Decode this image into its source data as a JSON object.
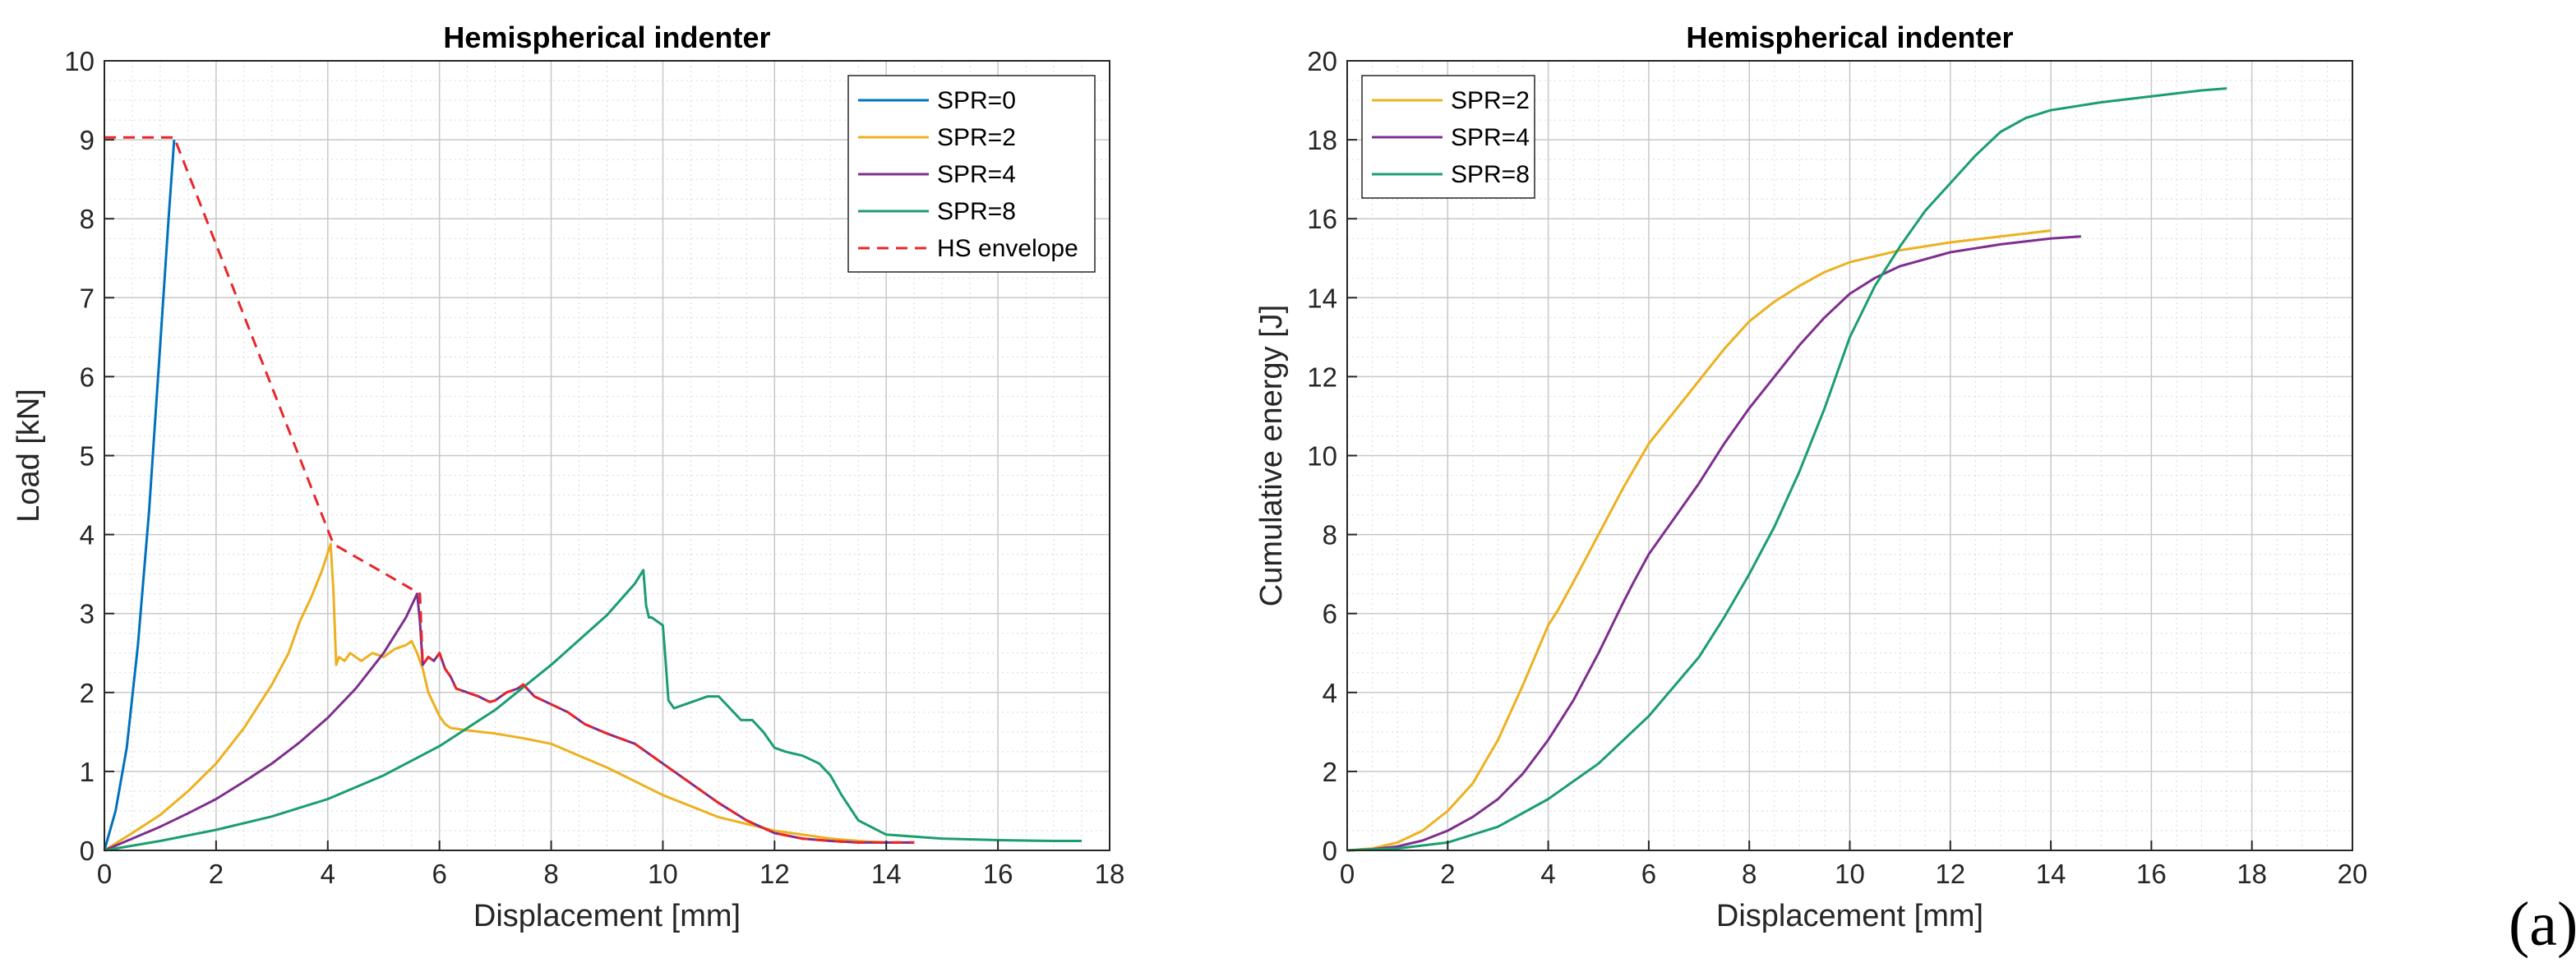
{
  "panel_label": "(a)",
  "chart_data": [
    {
      "type": "line",
      "title": "Hemispherical indenter",
      "xlabel": "Displacement [mm]",
      "ylabel": "Load [kN]",
      "xlim": [
        0,
        18
      ],
      "ylim": [
        0,
        10
      ],
      "xticks": [
        0,
        2,
        4,
        6,
        8,
        10,
        12,
        14,
        16,
        18
      ],
      "yticks": [
        0,
        1,
        2,
        3,
        4,
        5,
        6,
        7,
        8,
        9,
        10
      ],
      "grid": true,
      "minor_grid": true,
      "legend_position": "top-right",
      "series": [
        {
          "name": "SPR=0",
          "color": "#0072BD",
          "style": "solid",
          "x": [
            0,
            0.2,
            0.4,
            0.6,
            0.8,
            1.0,
            1.15,
            1.25
          ],
          "y": [
            0,
            0.5,
            1.3,
            2.6,
            4.3,
            6.4,
            8.0,
            9.0
          ]
        },
        {
          "name": "SPR=2",
          "color": "#EDB120",
          "style": "solid",
          "x": [
            0,
            0.5,
            1.0,
            1.5,
            2.0,
            2.5,
            3.0,
            3.3,
            3.5,
            3.7,
            3.9,
            4.05,
            4.1,
            4.15,
            4.2,
            4.3,
            4.4,
            4.6,
            4.8,
            5.0,
            5.2,
            5.4,
            5.5,
            5.6,
            5.7,
            5.8,
            5.9,
            6.0,
            6.1,
            6.2,
            6.5,
            7.0,
            7.5,
            8.0,
            8.5,
            9.0,
            10.0,
            11.0,
            12.0,
            13.0,
            13.5,
            14.0,
            14.5
          ],
          "y": [
            0,
            0.22,
            0.45,
            0.75,
            1.1,
            1.55,
            2.1,
            2.5,
            2.9,
            3.2,
            3.55,
            3.88,
            3.3,
            2.35,
            2.45,
            2.4,
            2.5,
            2.4,
            2.5,
            2.45,
            2.55,
            2.6,
            2.65,
            2.5,
            2.3,
            2.0,
            1.85,
            1.7,
            1.6,
            1.55,
            1.52,
            1.48,
            1.42,
            1.35,
            1.2,
            1.05,
            0.7,
            0.42,
            0.25,
            0.15,
            0.12,
            0.1,
            0.1
          ]
        },
        {
          "name": "SPR=4",
          "color": "#7E2F8E",
          "style": "solid",
          "x": [
            0,
            0.5,
            1.0,
            1.5,
            2.0,
            2.5,
            3.0,
            3.5,
            4.0,
            4.5,
            5.0,
            5.4,
            5.6,
            5.65,
            5.7,
            5.8,
            5.9,
            6.0,
            6.1,
            6.2,
            6.3,
            6.5,
            6.7,
            6.9,
            7.0,
            7.2,
            7.4,
            7.5,
            7.7,
            8.0,
            8.3,
            8.6,
            9.0,
            9.5,
            10.0,
            10.5,
            11.0,
            11.5,
            12.0,
            12.5,
            13.0,
            13.5,
            14.0,
            14.5
          ],
          "y": [
            0,
            0.15,
            0.3,
            0.47,
            0.65,
            0.87,
            1.1,
            1.37,
            1.68,
            2.05,
            2.5,
            2.95,
            3.25,
            2.9,
            2.35,
            2.45,
            2.4,
            2.5,
            2.3,
            2.2,
            2.05,
            2.0,
            1.95,
            1.88,
            1.9,
            2.0,
            2.05,
            2.1,
            1.95,
            1.85,
            1.75,
            1.6,
            1.48,
            1.35,
            1.1,
            0.85,
            0.6,
            0.38,
            0.22,
            0.15,
            0.12,
            0.1,
            0.1,
            0.1
          ]
        },
        {
          "name": "SPR=8",
          "color": "#1B9E6E",
          "style": "solid",
          "x": [
            0,
            1.0,
            2.0,
            3.0,
            4.0,
            5.0,
            6.0,
            7.0,
            8.0,
            9.0,
            9.5,
            9.65,
            9.7,
            9.75,
            9.8,
            10.0,
            10.05,
            10.1,
            10.2,
            10.4,
            10.6,
            10.8,
            11.0,
            11.2,
            11.4,
            11.6,
            11.8,
            12.0,
            12.2,
            12.5,
            12.8,
            13.0,
            13.2,
            13.5,
            14.0,
            15.0,
            16.0,
            17.0,
            17.5
          ],
          "y": [
            0,
            0.12,
            0.26,
            0.43,
            0.65,
            0.95,
            1.32,
            1.78,
            2.35,
            2.98,
            3.38,
            3.55,
            3.1,
            2.95,
            2.95,
            2.85,
            2.4,
            1.9,
            1.8,
            1.85,
            1.9,
            1.95,
            1.95,
            1.8,
            1.65,
            1.65,
            1.5,
            1.3,
            1.25,
            1.2,
            1.1,
            0.95,
            0.7,
            0.38,
            0.2,
            0.15,
            0.13,
            0.12,
            0.12
          ]
        },
        {
          "name": "HS envelope",
          "color": "#E8262A",
          "style": "dashed",
          "x": [
            0,
            1.25,
            4.1,
            5.65,
            5.7,
            5.8,
            5.9,
            6.0,
            6.1,
            6.2,
            6.3,
            6.5,
            6.7,
            6.9,
            7.0,
            7.2,
            7.4,
            7.5,
            7.7,
            8.0,
            8.3,
            8.6,
            9.0,
            9.5,
            10.0,
            10.5,
            11.0,
            11.5,
            12.0,
            12.5,
            13.0,
            13.5,
            14.0,
            14.5
          ],
          "y": [
            9.03,
            9.03,
            3.88,
            3.25,
            2.35,
            2.45,
            2.4,
            2.5,
            2.3,
            2.2,
            2.05,
            2.0,
            1.95,
            1.88,
            1.9,
            2.0,
            2.05,
            2.1,
            1.95,
            1.85,
            1.75,
            1.6,
            1.48,
            1.35,
            1.1,
            0.85,
            0.6,
            0.38,
            0.22,
            0.15,
            0.12,
            0.1,
            0.1,
            0.1
          ]
        }
      ]
    },
    {
      "type": "line",
      "title": "Hemispherical indenter",
      "xlabel": "Displacement [mm]",
      "ylabel": "Cumulative energy [J]",
      "xlim": [
        0,
        20
      ],
      "ylim": [
        0,
        20
      ],
      "xticks": [
        0,
        2,
        4,
        6,
        8,
        10,
        12,
        14,
        16,
        18,
        20
      ],
      "yticks": [
        0,
        2,
        4,
        6,
        8,
        10,
        12,
        14,
        16,
        18,
        20
      ],
      "grid": true,
      "minor_grid": true,
      "legend_position": "top-left",
      "series": [
        {
          "name": "SPR=2",
          "color": "#EDB120",
          "style": "solid",
          "x": [
            0,
            0.5,
            1.0,
            1.5,
            2.0,
            2.5,
            3.0,
            3.5,
            4.0,
            4.2,
            4.5,
            5.0,
            5.5,
            6.0,
            6.5,
            7.0,
            7.5,
            8.0,
            8.5,
            9.0,
            9.5,
            10.0,
            11.0,
            12.0,
            13.0,
            14.0
          ],
          "y": [
            0,
            0.05,
            0.2,
            0.5,
            1.0,
            1.7,
            2.8,
            4.2,
            5.7,
            6.1,
            6.8,
            8.0,
            9.2,
            10.3,
            11.1,
            11.9,
            12.7,
            13.4,
            13.9,
            14.3,
            14.65,
            14.9,
            15.2,
            15.4,
            15.55,
            15.7
          ]
        },
        {
          "name": "SPR=4",
          "color": "#7E2F8E",
          "style": "solid",
          "x": [
            0,
            0.5,
            1.0,
            1.5,
            2.0,
            2.5,
            3.0,
            3.5,
            4.0,
            4.5,
            5.0,
            5.5,
            5.7,
            6.0,
            6.5,
            7.0,
            7.5,
            8.0,
            8.5,
            9.0,
            9.5,
            10.0,
            10.5,
            11.0,
            12.0,
            13.0,
            14.0,
            14.6
          ],
          "y": [
            0,
            0.03,
            0.1,
            0.25,
            0.5,
            0.85,
            1.3,
            1.95,
            2.8,
            3.8,
            5.0,
            6.3,
            6.8,
            7.5,
            8.4,
            9.3,
            10.3,
            11.2,
            12.0,
            12.8,
            13.5,
            14.1,
            14.5,
            14.8,
            15.15,
            15.35,
            15.5,
            15.55
          ]
        },
        {
          "name": "SPR=8",
          "color": "#1B9E6E",
          "style": "solid",
          "x": [
            0,
            1.0,
            2.0,
            3.0,
            4.0,
            5.0,
            6.0,
            7.0,
            7.5,
            8.0,
            8.5,
            9.0,
            9.5,
            10.0,
            10.5,
            11.0,
            11.5,
            12.0,
            12.5,
            13.0,
            13.5,
            14.0,
            15.0,
            16.0,
            17.0,
            17.5
          ],
          "y": [
            0,
            0.05,
            0.2,
            0.6,
            1.3,
            2.2,
            3.4,
            4.9,
            5.9,
            7.0,
            8.2,
            9.6,
            11.2,
            13.0,
            14.3,
            15.3,
            16.2,
            16.9,
            17.6,
            18.2,
            18.55,
            18.75,
            18.95,
            19.1,
            19.25,
            19.3
          ]
        }
      ]
    }
  ]
}
